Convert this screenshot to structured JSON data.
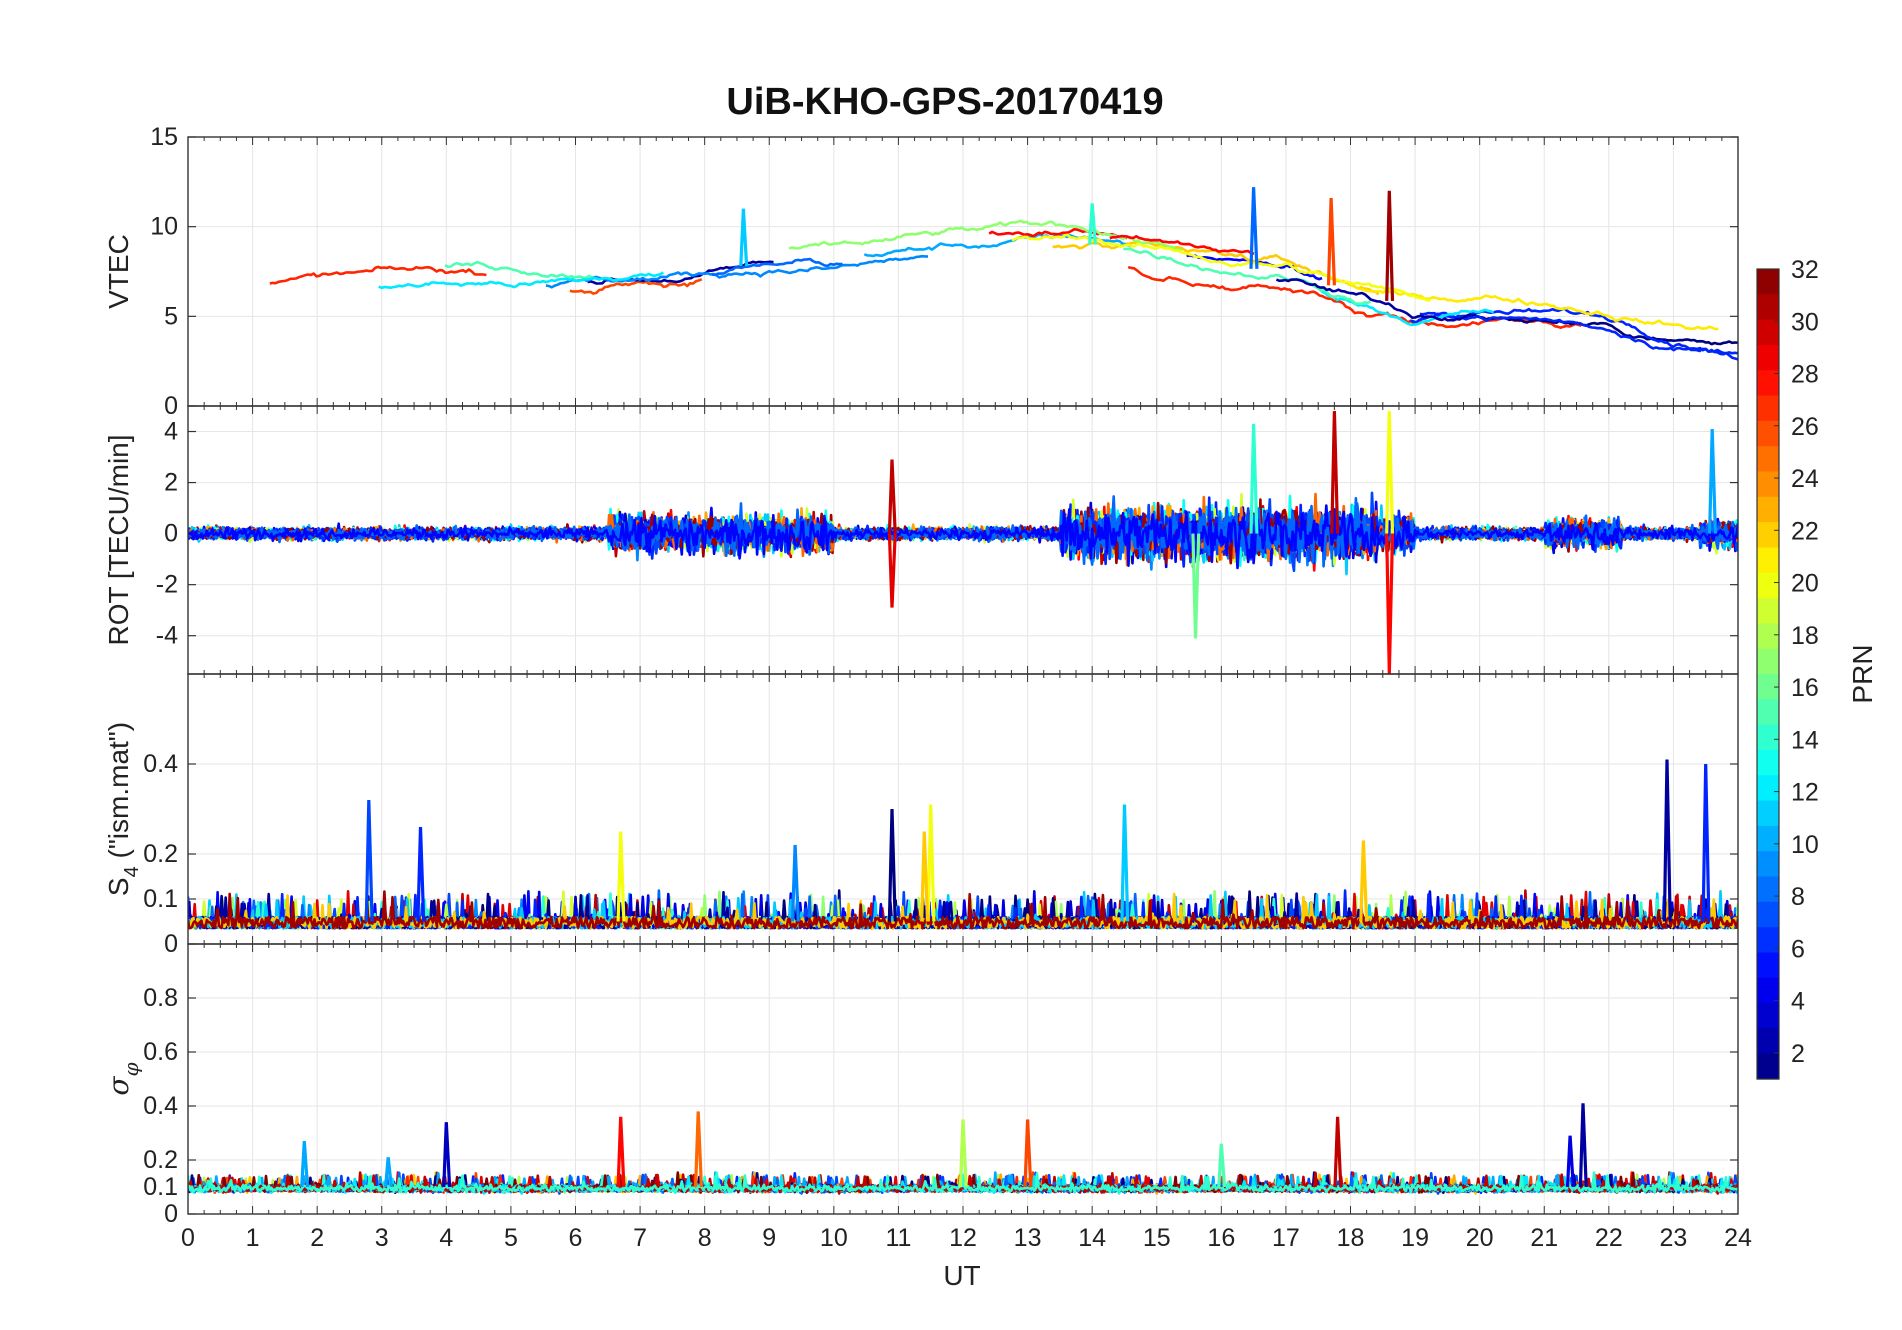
{
  "chart_data": {
    "title": "UiB-KHO-GPS-20170419",
    "xlabel": "UT",
    "xlim": [
      0,
      24
    ],
    "xticks": [
      "0",
      "1",
      "2",
      "3",
      "4",
      "5",
      "6",
      "7",
      "8",
      "9",
      "10",
      "11",
      "12",
      "13",
      "14",
      "15",
      "16",
      "17",
      "18",
      "19",
      "20",
      "21",
      "22",
      "23",
      "24"
    ],
    "grid": true,
    "colorbar": {
      "label": "PRN",
      "colormap": "jet",
      "range": [
        1,
        32
      ],
      "ticks": [
        "2",
        "4",
        "6",
        "8",
        "10",
        "12",
        "14",
        "16",
        "18",
        "20",
        "22",
        "24",
        "26",
        "28",
        "30",
        "32"
      ]
    },
    "panels": [
      {
        "type": "line",
        "ylabel": "VTEC",
        "ylim": [
          0,
          15
        ],
        "yticks": [
          "0",
          "5",
          "10",
          "15"
        ],
        "series_trend": {
          "x": [
            0,
            2,
            4,
            6,
            8,
            9,
            10,
            12,
            14,
            15,
            16,
            17,
            18,
            19,
            20,
            21,
            22,
            23,
            24
          ],
          "y": [
            6.5,
            6.8,
            7,
            7,
            7.5,
            8,
            8,
            8.7,
            9,
            8.3,
            7.8,
            7.5,
            6.4,
            5.5,
            5.8,
            5.6,
            5.2,
            4.5,
            4
          ]
        },
        "peaks": [
          {
            "x": 16.5,
            "y": 12.2
          },
          {
            "x": 18.6,
            "y": 12.0
          },
          {
            "x": 17.7,
            "y": 11.6
          },
          {
            "x": 8.6,
            "y": 11.0
          },
          {
            "x": 14.0,
            "y": 11.3
          }
        ]
      },
      {
        "type": "line",
        "ylabel": "ROT [TECU/min]",
        "ylim": [
          -5.5,
          5
        ],
        "yticks": [
          "-4",
          "-2",
          "0",
          "2",
          "4"
        ],
        "peaks": [
          {
            "x": 18.6,
            "y": 4.8
          },
          {
            "x": 18.6,
            "y": -5.5
          },
          {
            "x": 17.75,
            "y": 4.8
          },
          {
            "x": 16.5,
            "y": 4.3
          },
          {
            "x": 15.6,
            "y": -4.1
          },
          {
            "x": 23.6,
            "y": 4.1
          },
          {
            "x": 10.9,
            "y": -2.9
          },
          {
            "x": 10.9,
            "y": 2.9
          }
        ]
      },
      {
        "type": "line",
        "ylabel": "S",
        "ylabel_sub": "4",
        "ylabel_suffix": " (\"ism.mat\")",
        "ylim": [
          0,
          0.6
        ],
        "yticks": [
          "0",
          "0.1",
          "0.2",
          "0.4"
        ],
        "peaks": [
          {
            "x": 22.9,
            "y": 0.41
          },
          {
            "x": 23.5,
            "y": 0.4
          },
          {
            "x": 2.8,
            "y": 0.32
          },
          {
            "x": 14.5,
            "y": 0.31
          },
          {
            "x": 11.5,
            "y": 0.31
          },
          {
            "x": 10.9,
            "y": 0.3
          },
          {
            "x": 3.6,
            "y": 0.26
          },
          {
            "x": 6.7,
            "y": 0.25
          },
          {
            "x": 11.4,
            "y": 0.25
          },
          {
            "x": 9.4,
            "y": 0.22
          },
          {
            "x": 18.2,
            "y": 0.23
          }
        ]
      },
      {
        "type": "line",
        "ylabel": "σ",
        "ylabel_sub": "φ",
        "ylim": [
          0,
          1
        ],
        "yticks": [
          "0",
          "0.1",
          "0.2",
          "0.4",
          "0.6",
          "0.8"
        ],
        "peaks": [
          {
            "x": 21.6,
            "y": 0.41
          },
          {
            "x": 7.9,
            "y": 0.38
          },
          {
            "x": 17.8,
            "y": 0.36
          },
          {
            "x": 4.0,
            "y": 0.34
          },
          {
            "x": 12.0,
            "y": 0.35
          },
          {
            "x": 13.0,
            "y": 0.35
          },
          {
            "x": 6.7,
            "y": 0.36
          },
          {
            "x": 21.4,
            "y": 0.29
          },
          {
            "x": 1.8,
            "y": 0.27
          },
          {
            "x": 16.0,
            "y": 0.26
          },
          {
            "x": 3.1,
            "y": 0.21
          }
        ]
      }
    ]
  }
}
